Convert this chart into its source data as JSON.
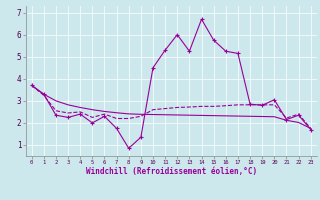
{
  "xlabel": "Windchill (Refroidissement éolien,°C)",
  "background_color": "#cce8ec",
  "line_color": "#990099",
  "xlim": [
    -0.5,
    23.5
  ],
  "ylim": [
    0.5,
    7.3
  ],
  "yticks": [
    1,
    2,
    3,
    4,
    5,
    6,
    7
  ],
  "xticks": [
    0,
    1,
    2,
    3,
    4,
    5,
    6,
    7,
    8,
    9,
    10,
    11,
    12,
    13,
    14,
    15,
    16,
    17,
    18,
    19,
    20,
    21,
    22,
    23
  ],
  "series1_x": [
    0,
    1,
    2,
    3,
    4,
    5,
    6,
    7,
    8,
    9,
    10,
    11,
    12,
    13,
    14,
    15,
    16,
    17,
    18,
    19,
    20,
    21,
    22,
    23
  ],
  "series1_y": [
    3.7,
    3.3,
    2.35,
    2.25,
    2.4,
    2.0,
    2.3,
    1.75,
    0.85,
    1.35,
    4.5,
    5.3,
    6.0,
    5.25,
    6.7,
    5.75,
    5.25,
    5.15,
    2.85,
    2.8,
    3.05,
    2.15,
    2.35,
    1.7
  ],
  "series2_x": [
    0,
    1,
    2,
    3,
    4,
    5,
    6,
    7,
    8,
    9,
    10,
    11,
    12,
    13,
    14,
    15,
    16,
    17,
    18,
    19,
    20,
    21,
    22,
    23
  ],
  "series2_y": [
    3.7,
    3.25,
    2.55,
    2.45,
    2.5,
    2.25,
    2.4,
    2.2,
    2.2,
    2.3,
    2.6,
    2.65,
    2.7,
    2.72,
    2.75,
    2.75,
    2.78,
    2.82,
    2.82,
    2.82,
    2.82,
    2.22,
    2.4,
    1.75
  ],
  "series3_x": [
    0,
    1,
    2,
    3,
    4,
    5,
    6,
    7,
    8,
    9,
    10,
    11,
    12,
    13,
    14,
    15,
    16,
    17,
    18,
    19,
    20,
    21,
    22,
    23
  ],
  "series3_y": [
    3.7,
    3.3,
    3.0,
    2.82,
    2.7,
    2.6,
    2.52,
    2.46,
    2.41,
    2.39,
    2.38,
    2.37,
    2.36,
    2.35,
    2.34,
    2.33,
    2.32,
    2.31,
    2.3,
    2.29,
    2.28,
    2.12,
    2.02,
    1.75
  ]
}
